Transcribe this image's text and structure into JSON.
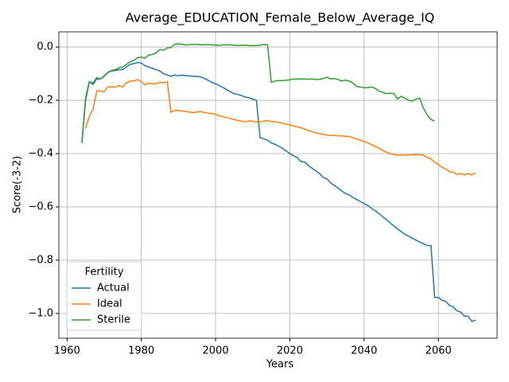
{
  "chart_data": {
    "type": "line",
    "title": "Average_EDUCATION_Female_Below_Average_IQ",
    "x_label": "Years",
    "y_label": "Score(-3-2)",
    "x": [
      1964,
      1965,
      1966,
      1967,
      1968,
      1969,
      1970,
      1971,
      1972,
      1973,
      1974,
      1975,
      1976,
      1977,
      1978,
      1979,
      1980,
      1981,
      1982,
      1983,
      1984,
      1985,
      1986,
      1987,
      1988,
      1989,
      1990,
      1991,
      1992,
      1993,
      1994,
      1995,
      1996,
      1997,
      1998,
      1999,
      2000,
      2001,
      2002,
      2003,
      2004,
      2005,
      2006,
      2007,
      2008,
      2009,
      2010,
      2011,
      2012,
      2013,
      2014,
      2015,
      2016,
      2017,
      2018,
      2019,
      2020,
      2021,
      2022,
      2023,
      2024,
      2025,
      2026,
      2027,
      2028,
      2029,
      2030,
      2031,
      2032,
      2033,
      2034,
      2035,
      2036,
      2037,
      2038,
      2039,
      2040,
      2041,
      2042,
      2043,
      2044,
      2045,
      2046,
      2047,
      2048,
      2049,
      2050,
      2051,
      2052,
      2053,
      2054,
      2055,
      2056,
      2057,
      2058,
      2059,
      2060,
      2061,
      2062,
      2063,
      2064,
      2065,
      2066,
      2067,
      2068,
      2069,
      2070
    ],
    "series": [
      {
        "name": "Actual",
        "color": "#1f77b4",
        "values": [
          -0.36,
          -0.2,
          -0.13,
          -0.14,
          -0.12,
          -0.12,
          -0.11,
          -0.095,
          -0.09,
          -0.088,
          -0.085,
          -0.085,
          -0.075,
          -0.065,
          -0.062,
          -0.058,
          -0.06,
          -0.07,
          -0.075,
          -0.08,
          -0.085,
          -0.09,
          -0.1,
          -0.105,
          -0.11,
          -0.105,
          -0.108,
          -0.105,
          -0.108,
          -0.108,
          -0.11,
          -0.11,
          -0.112,
          -0.118,
          -0.125,
          -0.132,
          -0.138,
          -0.145,
          -0.152,
          -0.16,
          -0.168,
          -0.175,
          -0.178,
          -0.182,
          -0.188,
          -0.19,
          -0.195,
          -0.2,
          -0.34,
          -0.345,
          -0.35,
          -0.36,
          -0.365,
          -0.372,
          -0.38,
          -0.39,
          -0.4,
          -0.408,
          -0.415,
          -0.43,
          -0.432,
          -0.445,
          -0.455,
          -0.465,
          -0.475,
          -0.49,
          -0.495,
          -0.51,
          -0.52,
          -0.53,
          -0.54,
          -0.55,
          -0.555,
          -0.565,
          -0.572,
          -0.58,
          -0.588,
          -0.595,
          -0.605,
          -0.615,
          -0.625,
          -0.637,
          -0.648,
          -0.66,
          -0.672,
          -0.683,
          -0.693,
          -0.703,
          -0.71,
          -0.718,
          -0.725,
          -0.732,
          -0.738,
          -0.745,
          -0.745,
          -0.94,
          -0.94,
          -0.95,
          -0.955,
          -0.97,
          -0.975,
          -0.99,
          -0.995,
          -1.01,
          -1.01,
          -1.03,
          -1.025
        ]
      },
      {
        "name": "Ideal",
        "color": "#ff7f0e",
        "values": [
          null,
          -0.305,
          -0.26,
          -0.235,
          -0.165,
          -0.165,
          -0.168,
          -0.15,
          -0.15,
          -0.15,
          -0.145,
          -0.15,
          -0.135,
          -0.128,
          -0.128,
          -0.122,
          -0.13,
          -0.142,
          -0.135,
          -0.138,
          -0.138,
          -0.132,
          -0.135,
          -0.13,
          -0.245,
          -0.238,
          -0.238,
          -0.24,
          -0.242,
          -0.244,
          -0.246,
          -0.244,
          -0.242,
          -0.246,
          -0.248,
          -0.25,
          -0.252,
          -0.258,
          -0.262,
          -0.265,
          -0.268,
          -0.272,
          -0.276,
          -0.278,
          -0.28,
          -0.278,
          -0.278,
          -0.282,
          -0.28,
          -0.278,
          -0.276,
          -0.28,
          -0.28,
          -0.283,
          -0.286,
          -0.29,
          -0.293,
          -0.296,
          -0.3,
          -0.303,
          -0.308,
          -0.313,
          -0.318,
          -0.322,
          -0.325,
          -0.328,
          -0.33,
          -0.332,
          -0.332,
          -0.333,
          -0.334,
          -0.335,
          -0.336,
          -0.34,
          -0.345,
          -0.35,
          -0.355,
          -0.36,
          -0.367,
          -0.373,
          -0.38,
          -0.388,
          -0.395,
          -0.4,
          -0.403,
          -0.406,
          -0.405,
          -0.406,
          -0.404,
          -0.405,
          -0.403,
          -0.405,
          -0.405,
          -0.415,
          -0.42,
          -0.432,
          -0.44,
          -0.452,
          -0.458,
          -0.468,
          -0.47,
          -0.478,
          -0.475,
          -0.48,
          -0.475,
          -0.48,
          -0.472
        ]
      },
      {
        "name": "Sterile",
        "color": "#2ca02c",
        "values": [
          -0.36,
          -0.19,
          -0.13,
          -0.135,
          -0.115,
          -0.12,
          -0.108,
          -0.095,
          -0.088,
          -0.085,
          -0.078,
          -0.075,
          -0.065,
          -0.055,
          -0.05,
          -0.04,
          -0.038,
          -0.042,
          -0.03,
          -0.028,
          -0.022,
          -0.01,
          -0.012,
          -0.003,
          -0.002,
          0.01,
          0.012,
          0.01,
          0.007,
          0.009,
          0.01,
          0.01,
          0.008,
          0.009,
          0.009,
          0.008,
          0.007,
          0.006,
          0.008,
          0.008,
          0.008,
          0.007,
          0.006,
          0.007,
          0.007,
          0.006,
          0.005,
          0.006,
          0.007,
          0.01,
          0.008,
          -0.132,
          -0.128,
          -0.126,
          -0.126,
          -0.125,
          -0.123,
          -0.12,
          -0.12,
          -0.12,
          -0.12,
          -0.121,
          -0.12,
          -0.122,
          -0.122,
          -0.118,
          -0.113,
          -0.12,
          -0.118,
          -0.122,
          -0.128,
          -0.124,
          -0.128,
          -0.135,
          -0.148,
          -0.15,
          -0.153,
          -0.152,
          -0.15,
          -0.155,
          -0.165,
          -0.17,
          -0.175,
          -0.173,
          -0.175,
          -0.195,
          -0.185,
          -0.192,
          -0.2,
          -0.203,
          -0.195,
          -0.192,
          -0.23,
          -0.255,
          -0.272,
          -0.278,
          null,
          null,
          null,
          null,
          null,
          null,
          null,
          null,
          null,
          null,
          null
        ]
      }
    ],
    "xlim": [
      1957.8,
      2075.8
    ],
    "xticks": [
      1960,
      1980,
      2000,
      2020,
      2040,
      2060
    ],
    "ylim": [
      -1.093,
      0.057
    ],
    "yticks": [
      {
        "value": 0,
        "label": "0.0"
      },
      {
        "value": -0.2,
        "label": "−0.2"
      },
      {
        "value": -0.4,
        "label": "−0.4"
      },
      {
        "value": -0.6,
        "label": "−0.6"
      },
      {
        "value": -0.8,
        "label": "−0.8"
      },
      {
        "value": -1.0,
        "label": "−1.0"
      }
    ],
    "grid": true,
    "legend_title": "Fertility",
    "legend_position": "lower left"
  }
}
